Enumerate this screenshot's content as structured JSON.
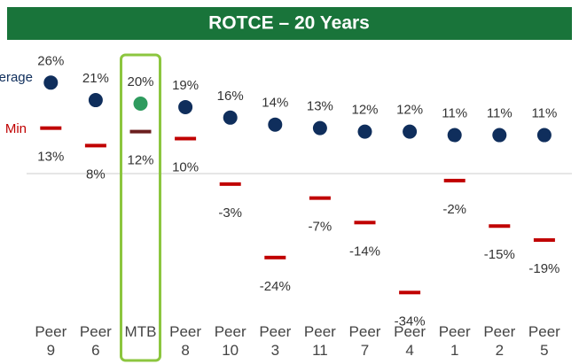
{
  "chart_data": {
    "type": "dot",
    "title": "ROTCE – 20 Years",
    "categories": [
      "Peer 9",
      "Peer 6",
      "MTB",
      "Peer 8",
      "Peer 10",
      "Peer 3",
      "Peer 11",
      "Peer 7",
      "Peer 4",
      "Peer 1",
      "Peer 2",
      "Peer 5"
    ],
    "series": [
      {
        "name": "Average",
        "color": "#0f2e5c",
        "marker": "dot",
        "values": [
          26,
          21,
          20,
          19,
          16,
          14,
          13,
          12,
          12,
          11,
          11,
          11
        ],
        "value_labels": [
          "26%",
          "21%",
          "20%",
          "19%",
          "16%",
          "14%",
          "13%",
          "12%",
          "12%",
          "11%",
          "11%",
          "11%"
        ],
        "highlight_color": "#2e9b5e"
      },
      {
        "name": "Min",
        "color": "#c00000",
        "marker": "dash",
        "values": [
          13,
          8,
          12,
          10,
          -3,
          -24,
          -7,
          -14,
          -34,
          -2,
          -15,
          -19
        ],
        "value_labels": [
          "13%",
          "8%",
          "12%",
          "10%",
          "-3%",
          "-24%",
          "-7%",
          "-14%",
          "-34%",
          "-2%",
          "-15%",
          "-19%"
        ],
        "highlight_color": "#6b1f1f"
      }
    ],
    "highlight_index": 2,
    "highlight_color": "#8cc63f",
    "title_color": "#19743a",
    "ylim": [
      -40,
      30
    ],
    "zero_line": true
  }
}
